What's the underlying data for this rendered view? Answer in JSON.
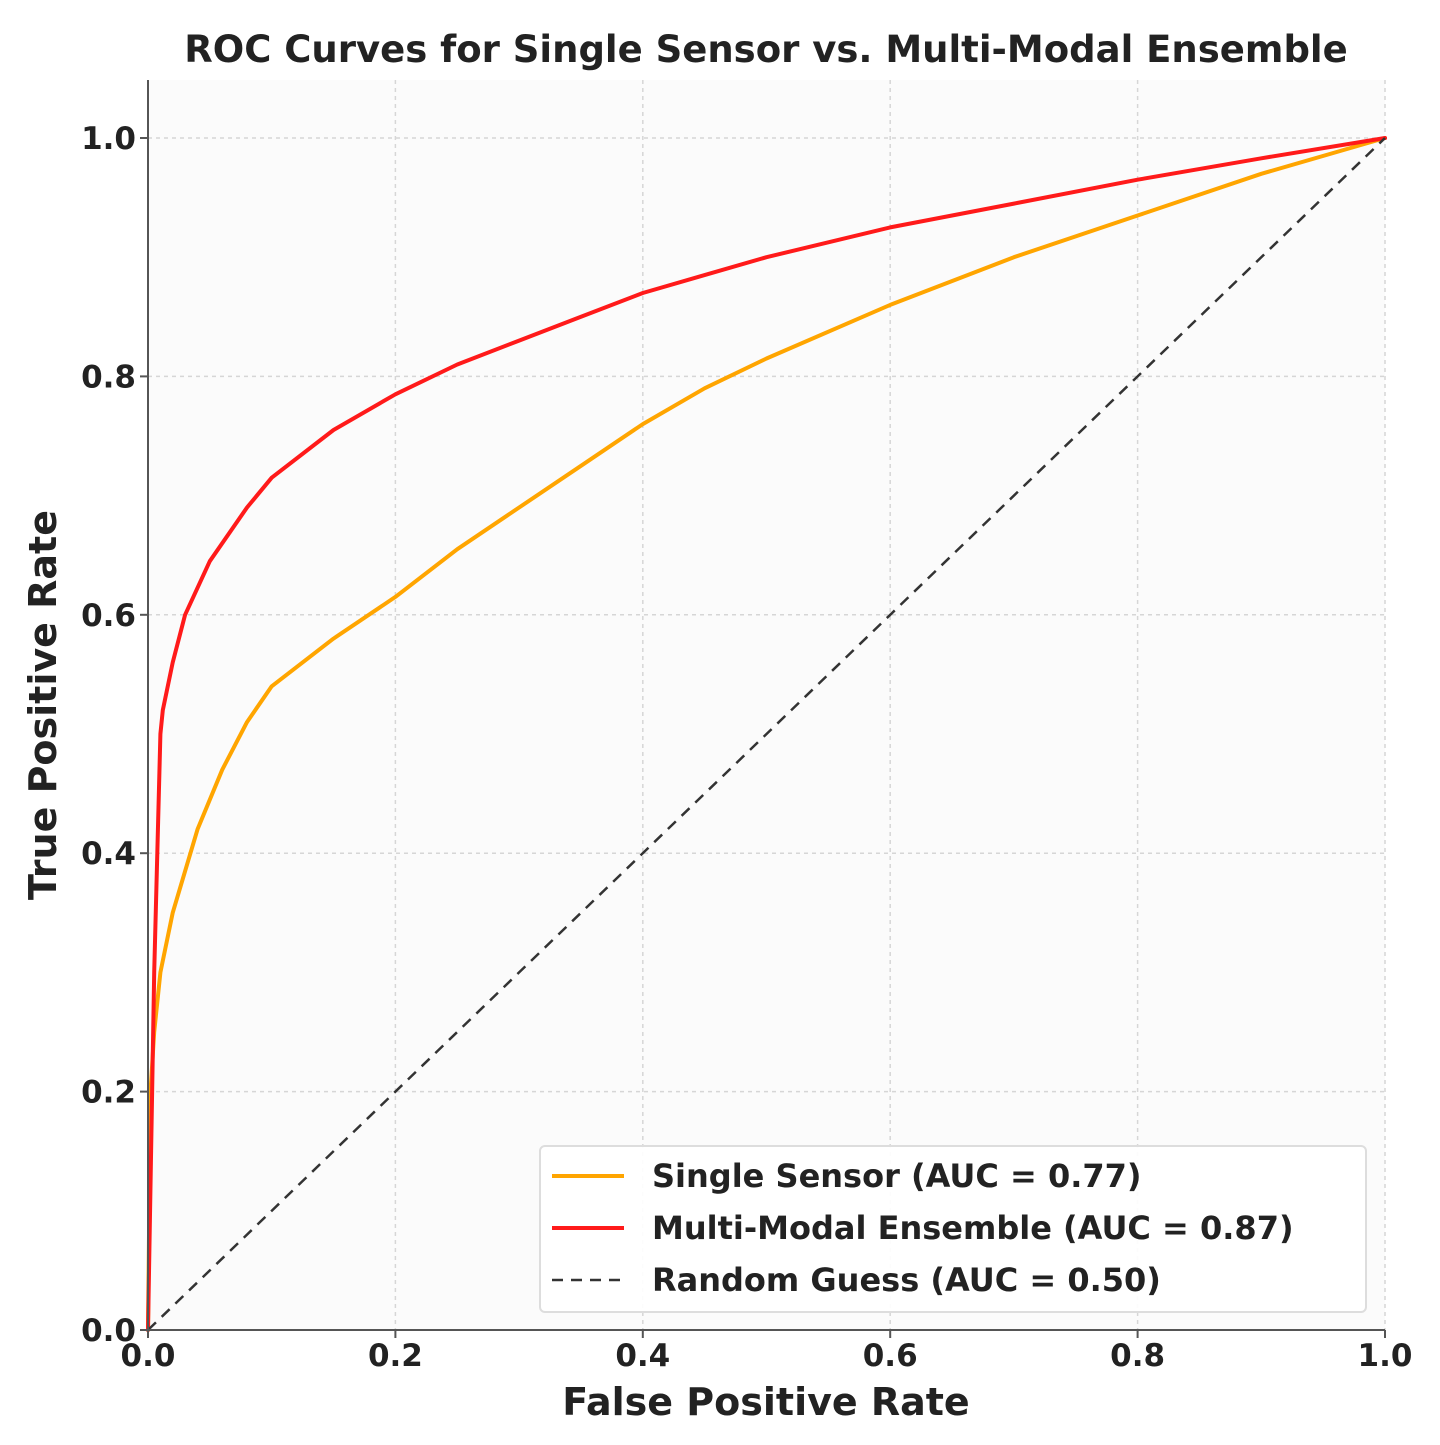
{
  "chart_data": {
    "type": "line",
    "title": "ROC Curves for Single Sensor vs. Multi-Modal Ensemble",
    "xlabel": "False Positive Rate",
    "ylabel": "True Positive Rate",
    "xlim": [
      0.0,
      1.0
    ],
    "ylim": [
      0.0,
      1.05
    ],
    "x_ticks": [
      "0.0",
      "0.2",
      "0.4",
      "0.6",
      "0.8",
      "1.0"
    ],
    "y_ticks": [
      "0.0",
      "0.2",
      "0.4",
      "0.6",
      "0.8",
      "1.0"
    ],
    "grid": true,
    "legend_position": "lower-right",
    "series": [
      {
        "name": "Single Sensor (AUC = 0.77)",
        "color": "#ffa500",
        "style": "solid",
        "x": [
          0.0,
          0.002,
          0.005,
          0.01,
          0.02,
          0.04,
          0.06,
          0.08,
          0.1,
          0.15,
          0.2,
          0.25,
          0.3,
          0.35,
          0.4,
          0.45,
          0.5,
          0.6,
          0.7,
          0.8,
          0.9,
          1.0
        ],
        "y": [
          0.0,
          0.2,
          0.25,
          0.3,
          0.35,
          0.42,
          0.47,
          0.51,
          0.54,
          0.58,
          0.615,
          0.655,
          0.69,
          0.725,
          0.76,
          0.79,
          0.815,
          0.86,
          0.9,
          0.935,
          0.97,
          1.0
        ]
      },
      {
        "name": "Multi-Modal Ensemble (AUC = 0.87)",
        "color": "#ff1a1a",
        "style": "solid",
        "x": [
          0.0,
          0.005,
          0.01,
          0.012,
          0.02,
          0.03,
          0.05,
          0.08,
          0.1,
          0.15,
          0.2,
          0.25,
          0.3,
          0.35,
          0.4,
          0.45,
          0.5,
          0.6,
          0.7,
          0.8,
          0.9,
          1.0
        ],
        "y": [
          0.0,
          0.3,
          0.5,
          0.52,
          0.56,
          0.6,
          0.645,
          0.69,
          0.715,
          0.755,
          0.785,
          0.81,
          0.83,
          0.85,
          0.87,
          0.885,
          0.9,
          0.925,
          0.945,
          0.965,
          0.983,
          1.0
        ]
      },
      {
        "name": "Random Guess (AUC = 0.50)",
        "color": "#333333",
        "style": "dashed",
        "x": [
          0.0,
          1.0
        ],
        "y": [
          0.0,
          1.0
        ]
      }
    ]
  }
}
